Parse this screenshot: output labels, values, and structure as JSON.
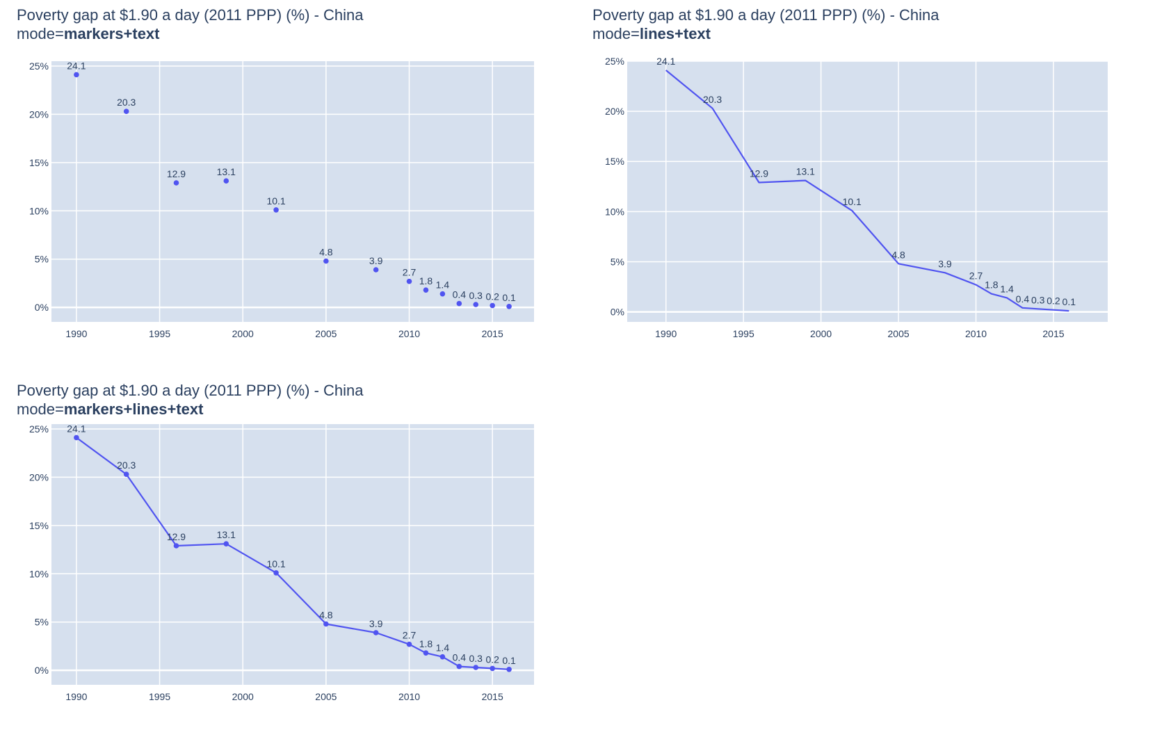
{
  "colors": {
    "plot_bg": "#d6e0ee",
    "grid": "#ffffff",
    "series": "#5054f0",
    "text": "#2a3f5f"
  },
  "chart_data": [
    {
      "type": "scatter",
      "mode": "markers+text",
      "title": "Poverty gap at $1.90 a day (2011 PPP) (%) - China",
      "subtitle_prefix": "mode=",
      "subtitle_value": "markers+text",
      "x": [
        1990,
        1993,
        1996,
        1999,
        2002,
        2005,
        2008,
        2010,
        2011,
        2012,
        2013,
        2014,
        2015,
        2016
      ],
      "y": [
        24.1,
        20.3,
        12.9,
        13.1,
        10.1,
        4.8,
        3.9,
        2.7,
        1.8,
        1.4,
        0.4,
        0.3,
        0.2,
        0.1
      ],
      "text": [
        "24.1",
        "20.3",
        "12.9",
        "13.1",
        "10.1",
        "4.8",
        "3.9",
        "2.7",
        "1.8",
        "1.4",
        "0.4",
        "0.3",
        "0.2",
        "0.1"
      ],
      "xticks": [
        "1990",
        "1995",
        "2000",
        "2005",
        "2010",
        "2015"
      ],
      "yticks": [
        "0%",
        "5%",
        "10%",
        "15%",
        "20%",
        "25%"
      ],
      "xlim": [
        1988.5,
        2017.5
      ],
      "ylim": [
        -1.5,
        25.5
      ],
      "grid": true
    },
    {
      "type": "line",
      "mode": "lines+text",
      "title": "Poverty gap at $1.90 a day (2011 PPP) (%) - China",
      "subtitle_prefix": "mode=",
      "subtitle_value": "lines+text",
      "x": [
        1990,
        1993,
        1996,
        1999,
        2002,
        2005,
        2008,
        2010,
        2011,
        2012,
        2013,
        2014,
        2015,
        2016
      ],
      "y": [
        24.1,
        20.3,
        12.9,
        13.1,
        10.1,
        4.8,
        3.9,
        2.7,
        1.8,
        1.4,
        0.4,
        0.3,
        0.2,
        0.1
      ],
      "text": [
        "24.1",
        "20.3",
        "12.9",
        "13.1",
        "10.1",
        "4.8",
        "3.9",
        "2.7",
        "1.8",
        "1.4",
        "0.4",
        "0.3",
        "0.2",
        "0.1"
      ],
      "xticks": [
        "1990",
        "1995",
        "2000",
        "2005",
        "2010",
        "2015"
      ],
      "yticks": [
        "0%",
        "5%",
        "10%",
        "15%",
        "20%",
        "25%"
      ],
      "xlim": [
        1987.5,
        2018.5
      ],
      "ylim": [
        -1.0,
        25.0
      ],
      "grid": true
    },
    {
      "type": "line",
      "mode": "markers+lines+text",
      "title": "Poverty gap at $1.90 a day (2011 PPP) (%) - China",
      "subtitle_prefix": "mode=",
      "subtitle_value": "markers+lines+text",
      "x": [
        1990,
        1993,
        1996,
        1999,
        2002,
        2005,
        2008,
        2010,
        2011,
        2012,
        2013,
        2014,
        2015,
        2016
      ],
      "y": [
        24.1,
        20.3,
        12.9,
        13.1,
        10.1,
        4.8,
        3.9,
        2.7,
        1.8,
        1.4,
        0.4,
        0.3,
        0.2,
        0.1
      ],
      "text": [
        "24.1",
        "20.3",
        "12.9",
        "13.1",
        "10.1",
        "4.8",
        "3.9",
        "2.7",
        "1.8",
        "1.4",
        "0.4",
        "0.3",
        "0.2",
        "0.1"
      ],
      "xticks": [
        "1990",
        "1995",
        "2000",
        "2005",
        "2010",
        "2015"
      ],
      "yticks": [
        "0%",
        "5%",
        "10%",
        "15%",
        "20%",
        "25%"
      ],
      "xlim": [
        1988.5,
        2017.5
      ],
      "ylim": [
        -1.5,
        25.5
      ],
      "grid": true
    }
  ]
}
